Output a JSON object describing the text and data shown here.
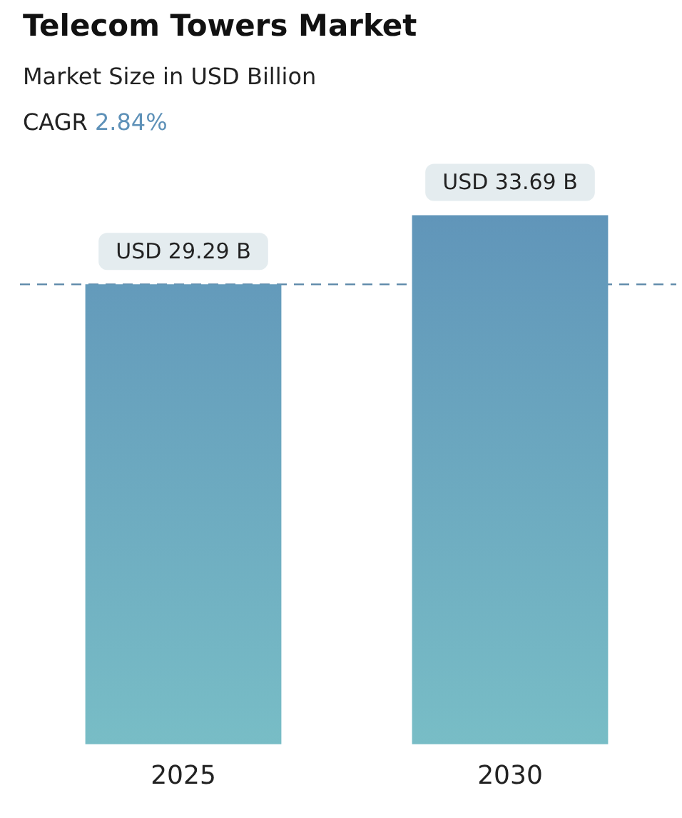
{
  "chart_data": {
    "type": "bar",
    "title": "Telecom Towers Market",
    "subtitle": "Market Size in USD Billion",
    "annotations": [
      "CAGR 2.84%"
    ],
    "categories": [
      "2025",
      "2030"
    ],
    "series": [
      {
        "color": "#5e91b8",
        "values": [
          29.29,
          33.69
        ],
        "value_labels": [
          "USD 29.29 B",
          "USD 33.69 B"
        ]
      }
    ],
    "ref_lines": [
      {
        "axis": "y",
        "value": 29.29,
        "color": "#5b87a8",
        "line_style": "dashed"
      }
    ],
    "grid": false,
    "legend": false
  }
}
